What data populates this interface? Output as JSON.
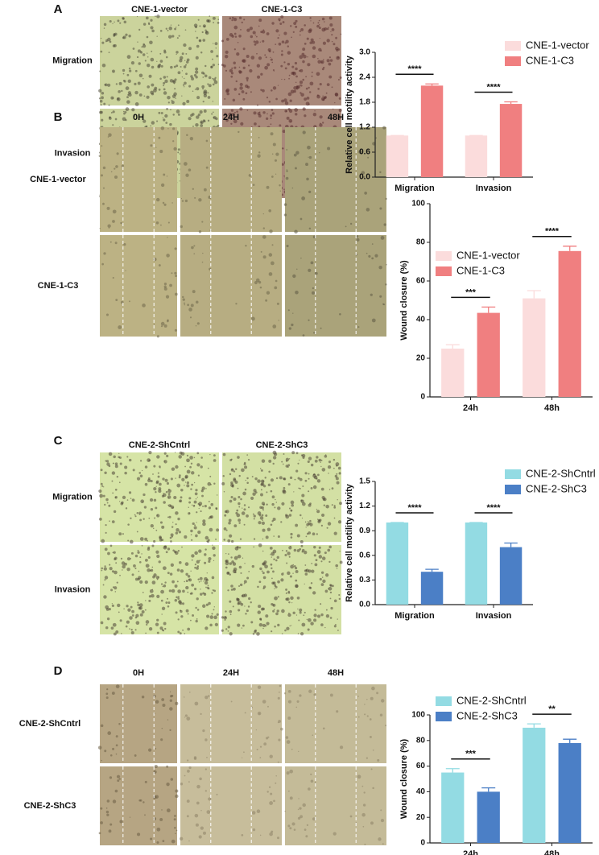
{
  "panels": [
    {
      "letter": "A",
      "columns": [
        "CNE-1-vector",
        "CNE-1-C3"
      ],
      "rows": [
        "Migration",
        "Invasion"
      ]
    },
    {
      "letter": "B",
      "columns": [
        "0H",
        "24H",
        "48H"
      ],
      "rows": [
        "CNE-1-vector",
        "CNE-1-C3"
      ]
    },
    {
      "letter": "C",
      "columns": [
        "CNE-2-ShCntrl",
        "CNE-2-ShC3"
      ],
      "rows": [
        "Migration",
        "Invasion"
      ]
    },
    {
      "letter": "D",
      "columns": [
        "0H",
        "24H",
        "48H"
      ],
      "rows": [
        "CNE-2-ShCntrl",
        "CNE-2-ShC3"
      ]
    }
  ],
  "chart_data": [
    {
      "type": "bar",
      "y_label": "Relative cell motility activity",
      "categories": [
        "Migration",
        "Invasion"
      ],
      "series": [
        {
          "name": "CNE-1-vector",
          "color": "#fbdcdc",
          "values": [
            1,
            1
          ],
          "errors": [
            0,
            0
          ]
        },
        {
          "name": "CNE-1-C3",
          "color": "#f07f80",
          "values": [
            2.2,
            1.76
          ],
          "errors": [
            0.04,
            0.05
          ]
        }
      ],
      "annotations": [
        "****",
        "****"
      ],
      "ylim": [
        0,
        3
      ],
      "yticks": [
        {
          "value": 0,
          "label": "0.0"
        },
        0.6,
        1.2,
        1.8,
        2.4,
        {
          "value": 3,
          "label": "3.0"
        }
      ]
    },
    {
      "type": "bar",
      "y_label": "Wound closure (%)",
      "categories": [
        "24h",
        "48h"
      ],
      "series": [
        {
          "name": "CNE-1-vector",
          "color": "#fbdcdc",
          "values": [
            25,
            51
          ],
          "errors": [
            2,
            4
          ]
        },
        {
          "name": "CNE-1-C3",
          "color": "#f07f80",
          "values": [
            43.5,
            75.5
          ],
          "errors": [
            3,
            2.5
          ]
        }
      ],
      "annotations": [
        "***",
        "****"
      ],
      "ylim": [
        0,
        100
      ],
      "yticks": [
        0,
        20,
        40,
        60,
        80,
        100
      ]
    },
    {
      "type": "bar",
      "y_label": "Relative cell motility activity",
      "categories": [
        "Migration",
        "Invasion"
      ],
      "series": [
        {
          "name": "CNE-2-ShCntrl",
          "color": "#93dbe3",
          "values": [
            1,
            1
          ],
          "errors": [
            0,
            0
          ]
        },
        {
          "name": "CNE-2-ShC3",
          "color": "#4b7fc6",
          "values": [
            0.4,
            0.7
          ],
          "errors": [
            0.03,
            0.05
          ]
        }
      ],
      "annotations": [
        "****",
        "****"
      ],
      "ylim": [
        0,
        1.5
      ],
      "yticks": [
        {
          "value": 0,
          "label": "0.0"
        },
        0.3,
        0.6,
        0.9,
        1.2,
        1.5
      ]
    },
    {
      "type": "bar",
      "y_label": "Wound closure (%)",
      "categories": [
        "24h",
        "48h"
      ],
      "series": [
        {
          "name": "CNE-2-ShCntrl",
          "color": "#93dbe3",
          "values": [
            55,
            90
          ],
          "errors": [
            3,
            3
          ]
        },
        {
          "name": "CNE-2-ShC3",
          "color": "#4b7fc6",
          "values": [
            40,
            78
          ],
          "errors": [
            3,
            3
          ]
        }
      ],
      "annotations": [
        "***",
        "**"
      ],
      "ylim": [
        0,
        100
      ],
      "yticks": [
        0,
        20,
        40,
        60,
        80,
        100
      ]
    }
  ]
}
